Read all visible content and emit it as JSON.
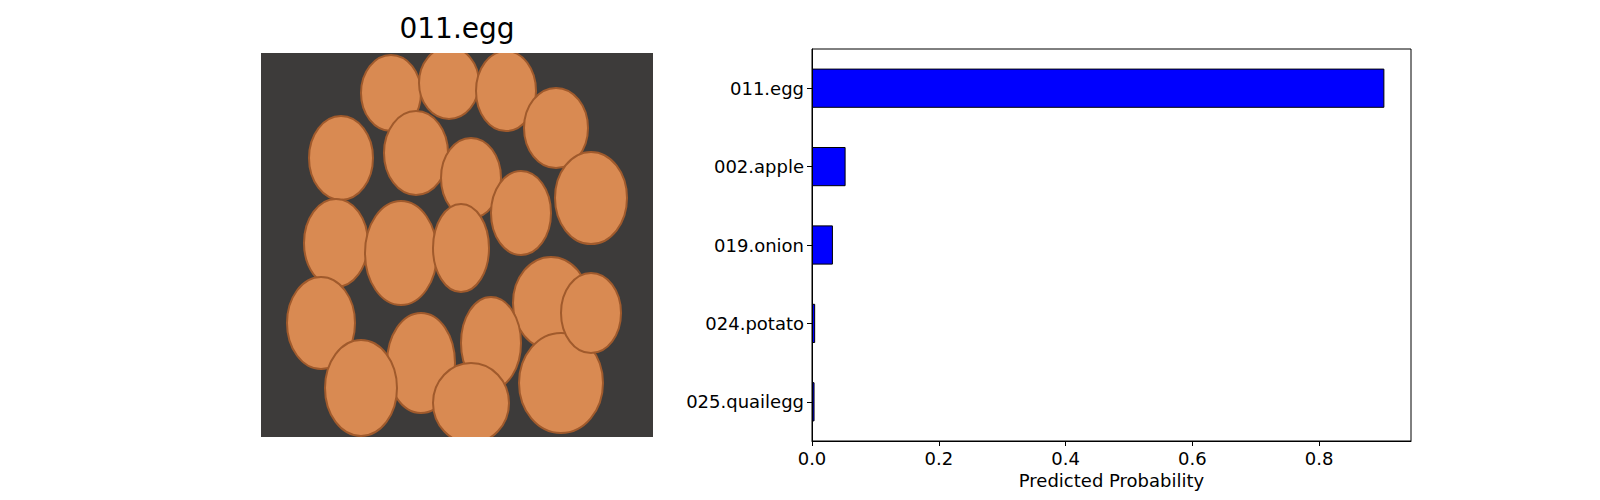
{
  "image": {
    "title": "011.egg"
  },
  "chart_data": {
    "type": "bar",
    "orientation": "horizontal",
    "categories": [
      "011.egg",
      "002.apple",
      "019.onion",
      "024.potato",
      "025.quailegg"
    ],
    "values": [
      0.903,
      0.053,
      0.033,
      0.005,
      0.004
    ],
    "color": "#0000ff",
    "xlabel": "Predicted Probability",
    "xlim": [
      0,
      0.945
    ],
    "xticks": [
      {
        "value": 0,
        "label": "0.0"
      },
      0.2,
      0.4,
      0.6,
      0.8
    ],
    "grid": false
  }
}
